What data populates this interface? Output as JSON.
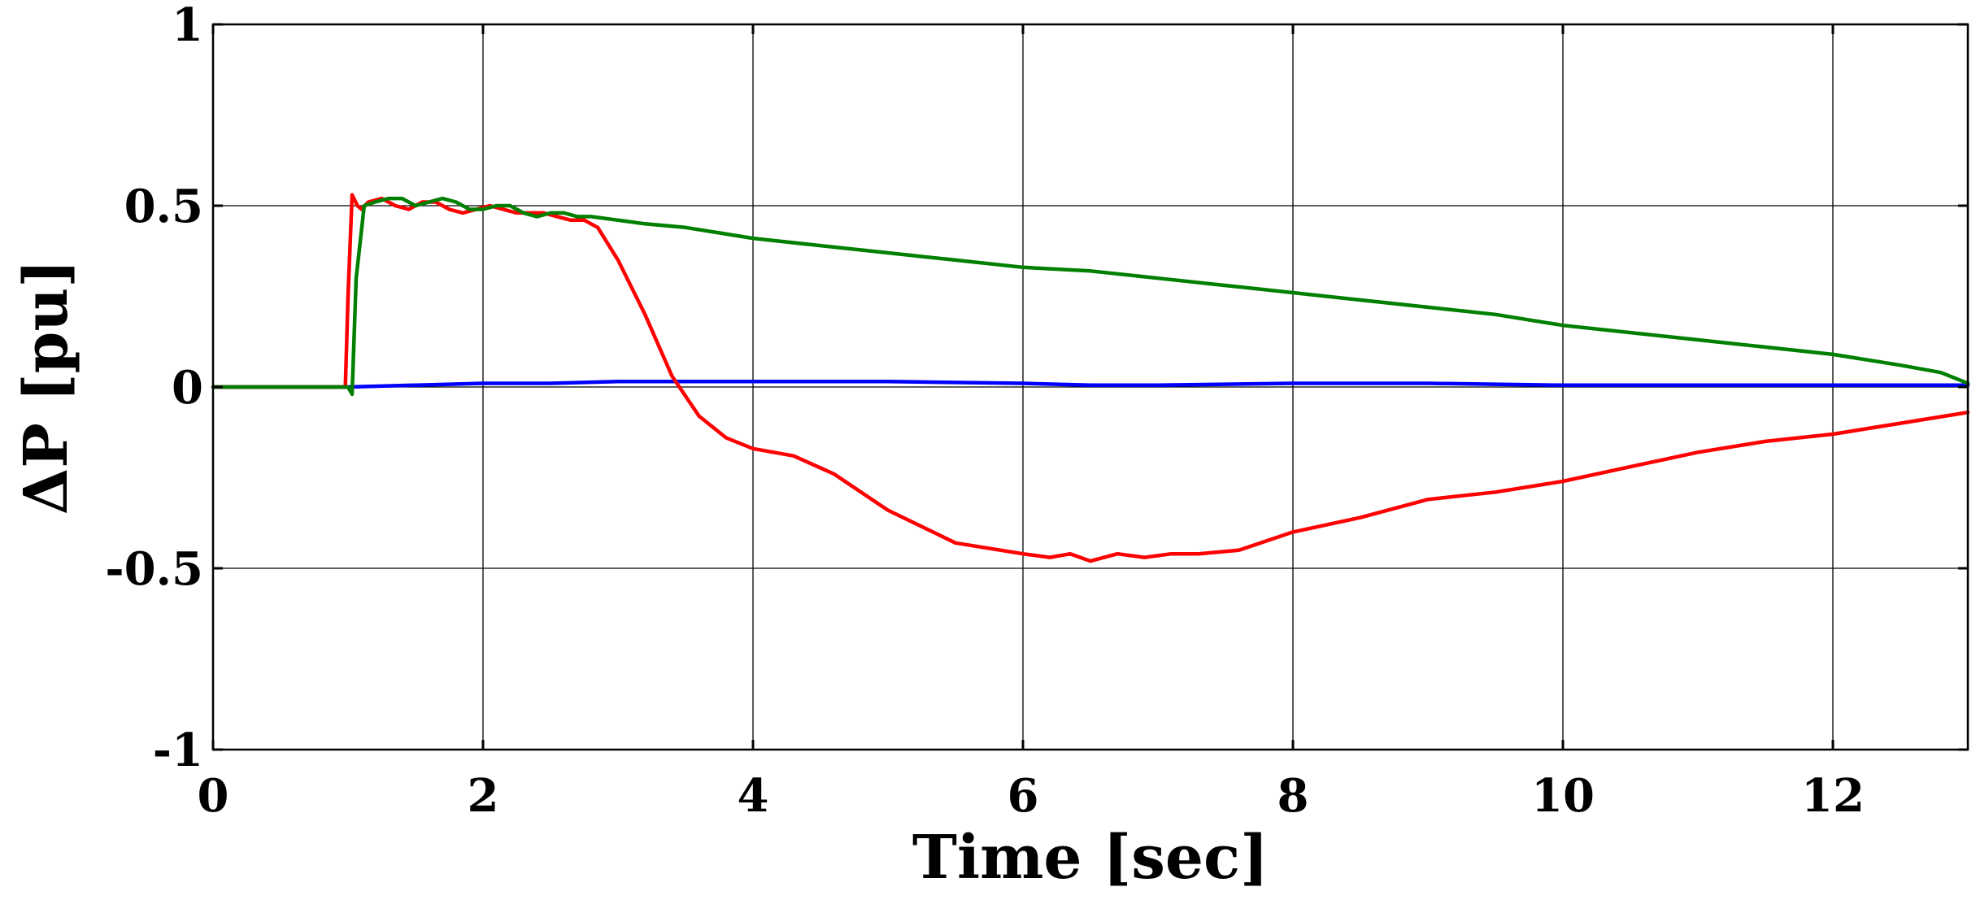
{
  "chart_data": {
    "type": "line",
    "title": "",
    "xlabel": "Time [sec]",
    "ylabel": "ΔP [pu]",
    "xlim": [
      0,
      13
    ],
    "ylim": [
      -1,
      1
    ],
    "xticks": [
      0,
      2,
      4,
      6,
      8,
      10,
      12
    ],
    "xtick_labels": [
      "0",
      "2",
      "4",
      "6",
      "8",
      "10",
      "12"
    ],
    "yticks": [
      -1,
      -0.5,
      0,
      0.5,
      1
    ],
    "ytick_labels": [
      "-1",
      "-0.5",
      "0",
      "0.5",
      "1"
    ],
    "grid": true,
    "legend": "none",
    "series": [
      {
        "color": "#0000ff",
        "x": [
          0,
          1,
          2,
          2.5,
          3,
          4,
          5,
          6,
          6.5,
          7,
          8,
          9,
          10,
          11,
          12,
          13
        ],
        "y": [
          0,
          0,
          0.01,
          0.01,
          0.015,
          0.015,
          0.015,
          0.01,
          0.005,
          0.005,
          0.01,
          0.01,
          0.005,
          0.005,
          0.005,
          0.005
        ]
      },
      {
        "color": "#ff0000",
        "x": [
          0,
          0.98,
          1.0,
          1.03,
          1.07,
          1.1,
          1.15,
          1.25,
          1.35,
          1.45,
          1.55,
          1.65,
          1.75,
          1.85,
          1.95,
          2.05,
          2.15,
          2.25,
          2.35,
          2.45,
          2.55,
          2.65,
          2.75,
          2.85,
          3.0,
          3.2,
          3.4,
          3.6,
          3.8,
          4.0,
          4.3,
          4.6,
          5.0,
          5.5,
          6.0,
          6.2,
          6.35,
          6.5,
          6.7,
          6.9,
          7.1,
          7.3,
          7.6,
          8.0,
          8.5,
          9.0,
          9.5,
          10.0,
          10.5,
          11.0,
          11.5,
          12.0,
          12.5,
          13.0
        ],
        "y": [
          0,
          0,
          0.25,
          0.53,
          0.5,
          0.49,
          0.51,
          0.52,
          0.5,
          0.49,
          0.51,
          0.51,
          0.49,
          0.48,
          0.49,
          0.5,
          0.49,
          0.48,
          0.48,
          0.48,
          0.47,
          0.46,
          0.46,
          0.44,
          0.35,
          0.2,
          0.03,
          -0.08,
          -0.14,
          -0.17,
          -0.19,
          -0.24,
          -0.34,
          -0.43,
          -0.46,
          -0.47,
          -0.46,
          -0.48,
          -0.46,
          -0.47,
          -0.46,
          -0.46,
          -0.45,
          -0.4,
          -0.36,
          -0.31,
          -0.29,
          -0.26,
          -0.22,
          -0.18,
          -0.15,
          -0.13,
          -0.1,
          -0.07
        ]
      },
      {
        "color": "#007f00",
        "x": [
          0,
          1.0,
          1.03,
          1.06,
          1.12,
          1.2,
          1.3,
          1.4,
          1.5,
          1.6,
          1.7,
          1.8,
          1.9,
          2.0,
          2.1,
          2.2,
          2.3,
          2.4,
          2.5,
          2.6,
          2.7,
          2.8,
          3.0,
          3.2,
          3.5,
          4.0,
          4.5,
          5.0,
          5.5,
          6.0,
          6.5,
          7.0,
          7.5,
          8.0,
          8.5,
          9.0,
          9.5,
          10.0,
          10.5,
          11.0,
          11.5,
          12.0,
          12.5,
          12.8,
          13.0
        ],
        "y": [
          0,
          0,
          -0.02,
          0.3,
          0.5,
          0.51,
          0.52,
          0.52,
          0.5,
          0.51,
          0.52,
          0.51,
          0.49,
          0.49,
          0.5,
          0.5,
          0.48,
          0.47,
          0.48,
          0.48,
          0.47,
          0.47,
          0.46,
          0.45,
          0.44,
          0.41,
          0.39,
          0.37,
          0.35,
          0.33,
          0.32,
          0.3,
          0.28,
          0.26,
          0.24,
          0.22,
          0.2,
          0.17,
          0.15,
          0.13,
          0.11,
          0.09,
          0.06,
          0.04,
          0.01
        ]
      }
    ]
  }
}
